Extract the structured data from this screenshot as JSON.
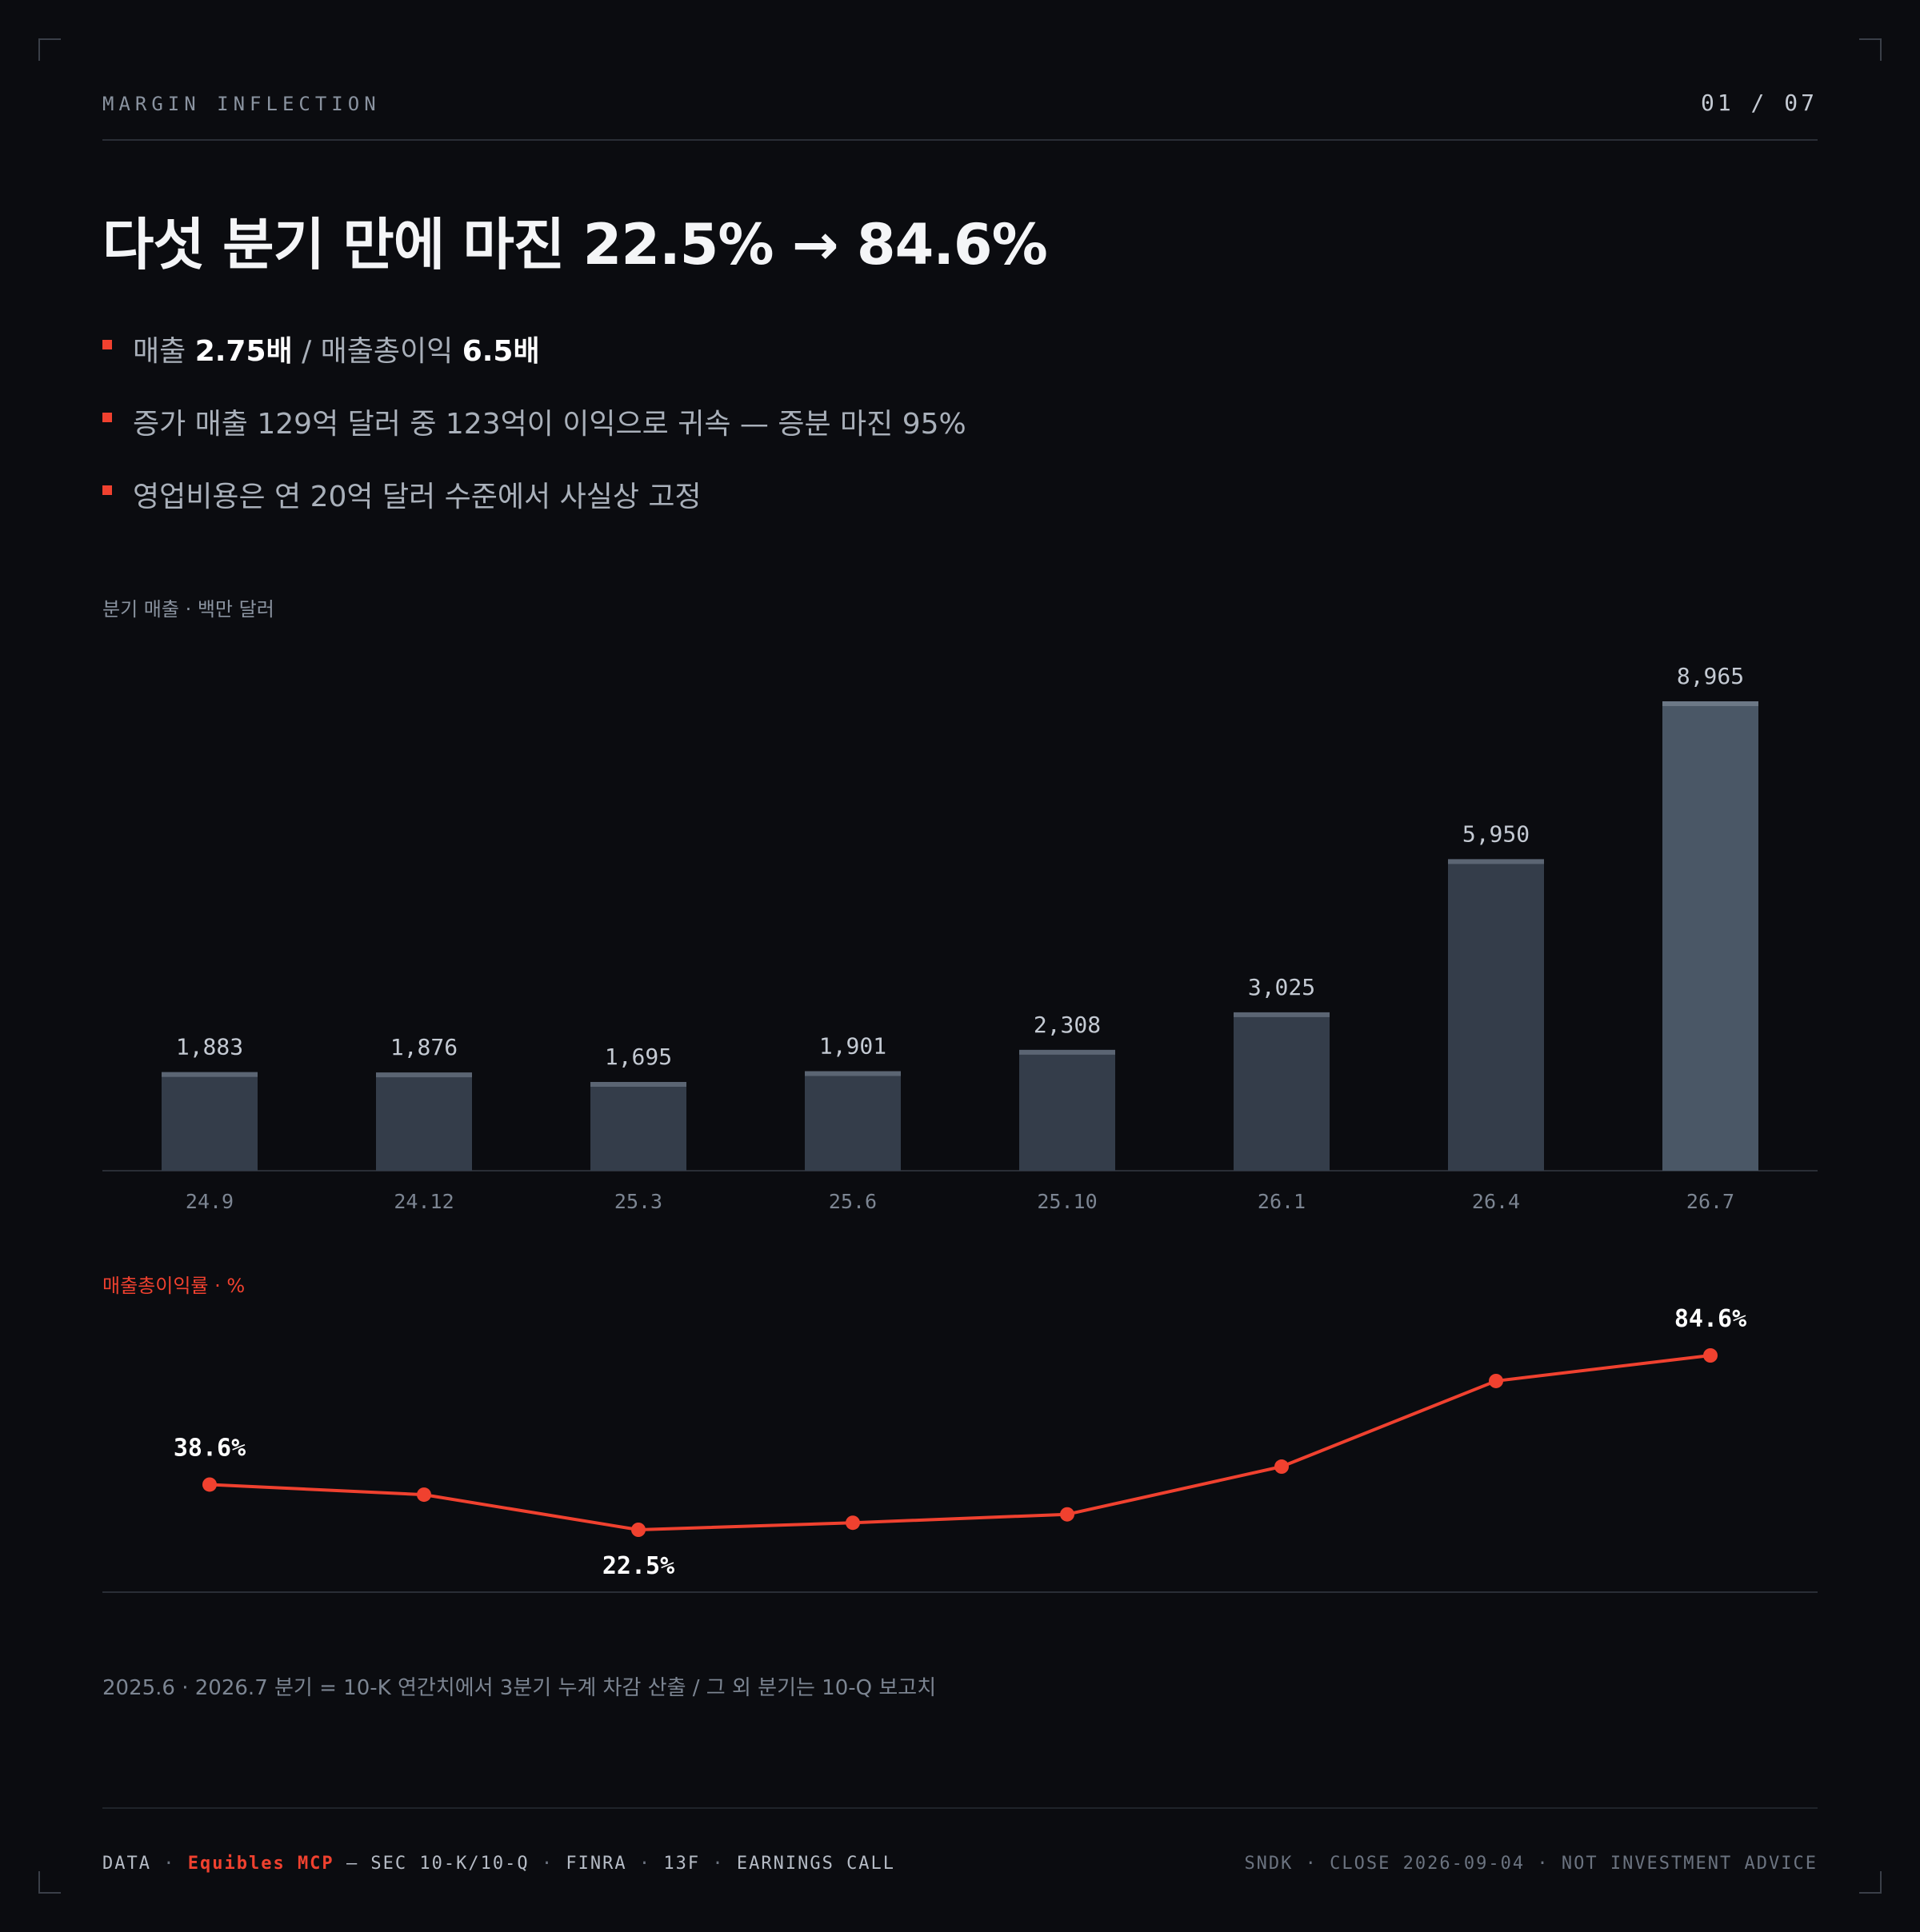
{
  "header": {
    "kicker": "MARGIN INFLECTION",
    "page": "01 / 07"
  },
  "title": "다섯 분기 만에 마진 22.5% → 84.6%",
  "bullets": [
    {
      "parts": [
        {
          "t": "매출 ",
          "b": false
        },
        {
          "t": "2.75배",
          "b": true
        },
        {
          "t": " / 매출총이익 ",
          "b": false
        },
        {
          "t": "6.5배",
          "b": true
        }
      ]
    },
    {
      "parts": [
        {
          "t": "증가 매출 129억 달러 중 123억이 이익으로 귀속 — 증분 마진 95%",
          "b": false
        }
      ]
    },
    {
      "parts": [
        {
          "t": "영업비용은 연 20억 달러 수준에서 사실상 고정",
          "b": false
        }
      ]
    }
  ],
  "sections": {
    "revenue_label": "분기 매출 · 백만 달러",
    "margin_label": "매출총이익률 · %"
  },
  "colors": {
    "accent": "#f0412f",
    "bar": "#343d4a",
    "bar_cap": "#5b6573",
    "bar_highlight": "#4a5766",
    "bar_highlight_cap": "#6c7886",
    "axis": "#2a2e36"
  },
  "chart_data": [
    {
      "type": "bar",
      "title": "분기 매출 · 백만 달러",
      "categories": [
        "24.9",
        "24.12",
        "25.3",
        "25.6",
        "25.10",
        "26.1",
        "26.4",
        "26.7"
      ],
      "values": [
        1883,
        1876,
        1695,
        1901,
        2308,
        3025,
        5950,
        8965
      ],
      "value_labels": [
        "1,883",
        "1,876",
        "1,695",
        "1,901",
        "2,308",
        "3,025",
        "5,950",
        "8,965"
      ],
      "ylim": [
        0,
        8965
      ],
      "highlight_index": 7,
      "grid": false,
      "legend": "none"
    },
    {
      "type": "line",
      "title": "매출총이익률 · %",
      "categories": [
        "24.9",
        "24.12",
        "25.3",
        "25.6",
        "25.10",
        "26.1",
        "26.4",
        "26.7"
      ],
      "values": [
        38.6,
        35.0,
        22.5,
        25.0,
        28.0,
        45.0,
        75.5,
        84.6
      ],
      "point_labels": [
        {
          "index": 0,
          "text": "38.6%",
          "position": "above"
        },
        {
          "index": 2,
          "text": "22.5%",
          "position": "below"
        },
        {
          "index": 7,
          "text": "84.6%",
          "position": "above"
        }
      ],
      "grid": false,
      "legend": "none"
    }
  ],
  "note": "2025.6 · 2026.7 분기 = 10-K 연간치에서 3분기 누계 차감 산출 / 그 외 분기는 10-Q 보고치",
  "footer": {
    "data_prefix": "DATA",
    "source_accent": "Equibles MCP",
    "source_rest": [
      "— SEC 10-K/10-Q",
      "FINRA",
      "13F",
      "EARNINGS CALL"
    ],
    "right": [
      "SNDK",
      "CLOSE 2026-09-04",
      "NOT INVESTMENT ADVICE"
    ]
  }
}
